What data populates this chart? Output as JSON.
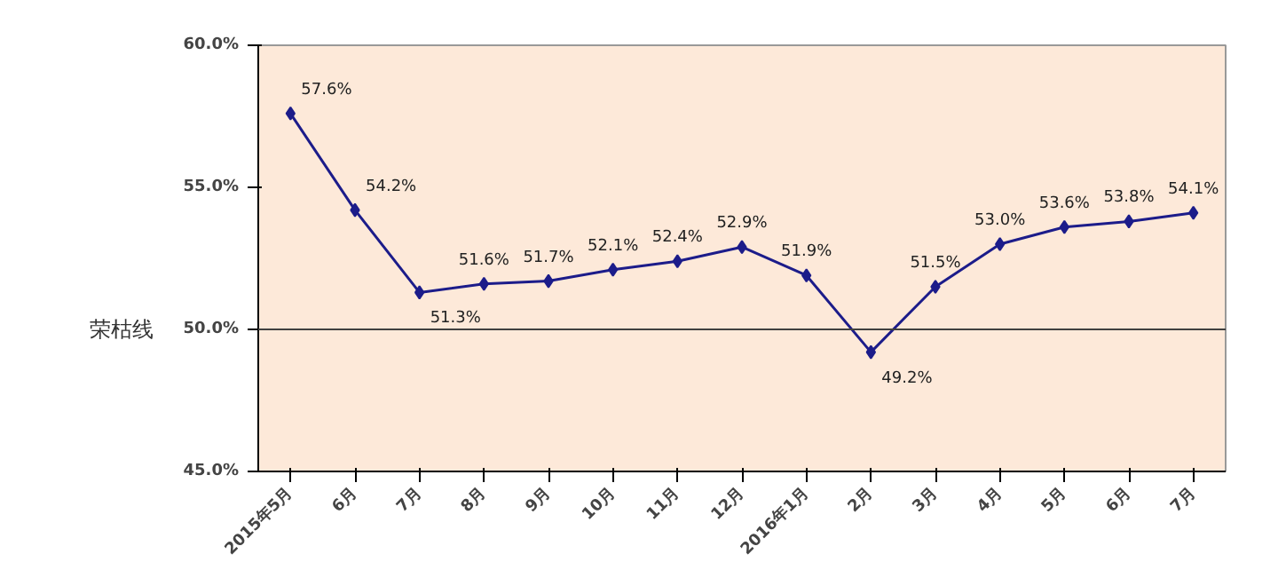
{
  "chart_data": {
    "type": "line",
    "categories": [
      "2015年5月",
      "6月",
      "7月",
      "8月",
      "9月",
      "10月",
      "11月",
      "12月",
      "2016年1月",
      "2月",
      "3月",
      "4月",
      "5月",
      "6月",
      "7月"
    ],
    "series": [
      {
        "color": "#1c1c8a",
        "values": [
          57.6,
          54.2,
          51.3,
          51.6,
          51.7,
          52.1,
          52.4,
          52.9,
          51.9,
          49.2,
          51.5,
          53.0,
          53.6,
          53.8,
          54.1
        ],
        "value_labels": [
          "57.6%",
          "54.2%",
          "51.3%",
          "51.6%",
          "51.7%",
          "52.1%",
          "52.4%",
          "52.9%",
          "51.9%",
          "49.2%",
          "51.5%",
          "53.0%",
          "53.6%",
          "53.8%",
          "54.1%"
        ]
      }
    ],
    "ylim": [
      45,
      60
    ],
    "yticks": [
      {
        "value": 45,
        "label": "45.0%"
      },
      {
        "value": 50,
        "label": "50.0%"
      },
      {
        "value": 55,
        "label": "55.0%"
      },
      {
        "value": 60,
        "label": "60.0%"
      }
    ],
    "ref_lines": [
      {
        "axis": "y",
        "value": 50,
        "label": "荣枯线",
        "color": "#404040"
      }
    ],
    "grid": false,
    "marker": "diamond",
    "line_style": "solid"
  }
}
